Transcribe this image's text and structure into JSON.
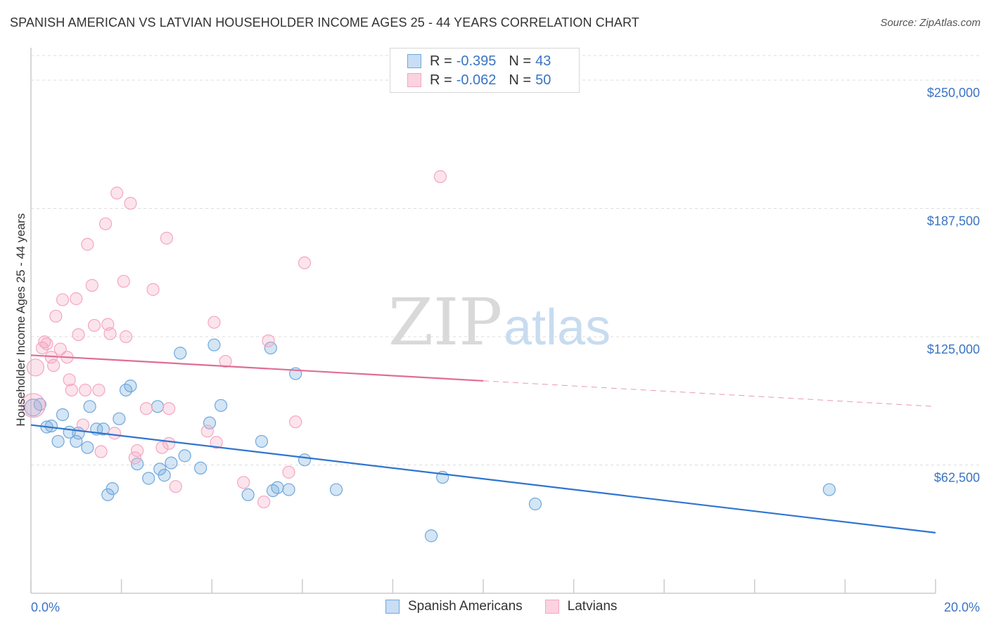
{
  "header": {
    "title": "SPANISH AMERICAN VS LATVIAN HOUSEHOLDER INCOME AGES 25 - 44 YEARS CORRELATION CHART",
    "source": "Source: ZipAtlas.com"
  },
  "watermark": {
    "zip": "ZIP",
    "atlas": "atlas"
  },
  "legend": {
    "rows": [
      {
        "r_label": "R =",
        "r_value": "-0.395",
        "n_label": "N =",
        "n_value": "43",
        "color": "#6fa8dc"
      },
      {
        "r_label": "R =",
        "r_value": "-0.062",
        "n_label": "N =",
        "n_value": "50",
        "color": "#f4a6c0"
      }
    ]
  },
  "bottom_legend": {
    "items": [
      {
        "label": "Spanish Americans",
        "color": "#6fa8dc"
      },
      {
        "label": "Latvians",
        "color": "#f4a6c0"
      }
    ]
  },
  "chart_data": {
    "type": "scatter",
    "title": "SPANISH AMERICAN VS LATVIAN HOUSEHOLDER INCOME AGES 25 - 44 YEARS CORRELATION CHART",
    "xlabel": "",
    "ylabel": "Householder Income Ages 25 - 44 years",
    "xlim": [
      0,
      20
    ],
    "ylim": [
      0,
      262000
    ],
    "x_tick_labels": [
      "0.0%",
      "20.0%"
    ],
    "y_ticks": [
      62500,
      125000,
      187500,
      250000
    ],
    "y_tick_labels": [
      "$62,500",
      "$125,000",
      "$187,500",
      "$250,000"
    ],
    "grid": true,
    "colors": {
      "blue": "#6fa8dc",
      "pink": "#f4a6c0",
      "blue_line": "#2f74d0",
      "pink_line": "#e06d96"
    },
    "series": [
      {
        "name": "Spanish Americans",
        "color": "#6fa8dc",
        "points": [
          [
            0.05,
            90500
          ],
          [
            0.2,
            92000
          ],
          [
            0.35,
            81000
          ],
          [
            0.45,
            81500
          ],
          [
            0.6,
            74000
          ],
          [
            0.7,
            87000
          ],
          [
            0.85,
            78500
          ],
          [
            1.0,
            74000
          ],
          [
            1.05,
            78000
          ],
          [
            1.25,
            71000
          ],
          [
            1.3,
            91000
          ],
          [
            1.45,
            80000
          ],
          [
            1.6,
            80000
          ],
          [
            1.7,
            48000
          ],
          [
            1.8,
            51000
          ],
          [
            1.95,
            85000
          ],
          [
            2.1,
            99000
          ],
          [
            2.2,
            101000
          ],
          [
            2.35,
            63000
          ],
          [
            2.6,
            56000
          ],
          [
            2.8,
            91000
          ],
          [
            2.85,
            60500
          ],
          [
            2.95,
            57500
          ],
          [
            3.1,
            63500
          ],
          [
            3.3,
            117000
          ],
          [
            3.4,
            67000
          ],
          [
            3.75,
            61000
          ],
          [
            3.95,
            83000
          ],
          [
            4.05,
            121000
          ],
          [
            4.2,
            91500
          ],
          [
            4.8,
            48000
          ],
          [
            5.1,
            74000
          ],
          [
            5.3,
            119500
          ],
          [
            5.35,
            50000
          ],
          [
            5.45,
            51500
          ],
          [
            5.7,
            50500
          ],
          [
            5.85,
            107000
          ],
          [
            6.05,
            65000
          ],
          [
            6.75,
            50500
          ],
          [
            8.85,
            28000
          ],
          [
            9.1,
            56500
          ],
          [
            11.15,
            43500
          ],
          [
            17.65,
            50500
          ]
        ]
      },
      {
        "name": "Latvians",
        "color": "#f4a6c0",
        "points": [
          [
            0.05,
            91500
          ],
          [
            0.1,
            110000
          ],
          [
            0.25,
            119500
          ],
          [
            0.3,
            122500
          ],
          [
            0.35,
            121500
          ],
          [
            0.45,
            115000
          ],
          [
            0.5,
            111000
          ],
          [
            0.55,
            135000
          ],
          [
            0.65,
            119000
          ],
          [
            0.7,
            143000
          ],
          [
            0.8,
            115000
          ],
          [
            0.85,
            104000
          ],
          [
            0.9,
            99000
          ],
          [
            1.0,
            143500
          ],
          [
            1.05,
            126000
          ],
          [
            1.15,
            82000
          ],
          [
            1.2,
            99000
          ],
          [
            1.25,
            170000
          ],
          [
            1.35,
            150000
          ],
          [
            1.4,
            130500
          ],
          [
            1.5,
            99000
          ],
          [
            1.55,
            69000
          ],
          [
            1.65,
            180000
          ],
          [
            1.7,
            131000
          ],
          [
            1.75,
            126500
          ],
          [
            1.85,
            78000
          ],
          [
            1.9,
            195000
          ],
          [
            2.05,
            152000
          ],
          [
            2.1,
            125000
          ],
          [
            2.2,
            190000
          ],
          [
            2.3,
            66000
          ],
          [
            2.35,
            69500
          ],
          [
            2.55,
            90000
          ],
          [
            2.7,
            148000
          ],
          [
            2.9,
            71000
          ],
          [
            3.0,
            173000
          ],
          [
            3.05,
            73000
          ],
          [
            3.05,
            90000
          ],
          [
            3.2,
            52000
          ],
          [
            3.9,
            79000
          ],
          [
            4.05,
            132000
          ],
          [
            4.1,
            73500
          ],
          [
            4.3,
            113000
          ],
          [
            4.7,
            54000
          ],
          [
            5.15,
            44500
          ],
          [
            5.25,
            123000
          ],
          [
            5.7,
            59000
          ],
          [
            5.85,
            83500
          ],
          [
            6.05,
            161000
          ],
          [
            9.05,
            203000
          ]
        ]
      }
    ],
    "trendlines": [
      {
        "name": "Spanish Americans",
        "x": [
          0,
          20
        ],
        "y": [
          82000,
          29500
        ],
        "dashed_from": null
      },
      {
        "name": "Latvians",
        "x": [
          0,
          10
        ],
        "y": [
          116000,
          103500
        ],
        "dash_x": [
          10,
          20
        ],
        "dash_y": [
          103500,
          91000
        ]
      }
    ]
  }
}
